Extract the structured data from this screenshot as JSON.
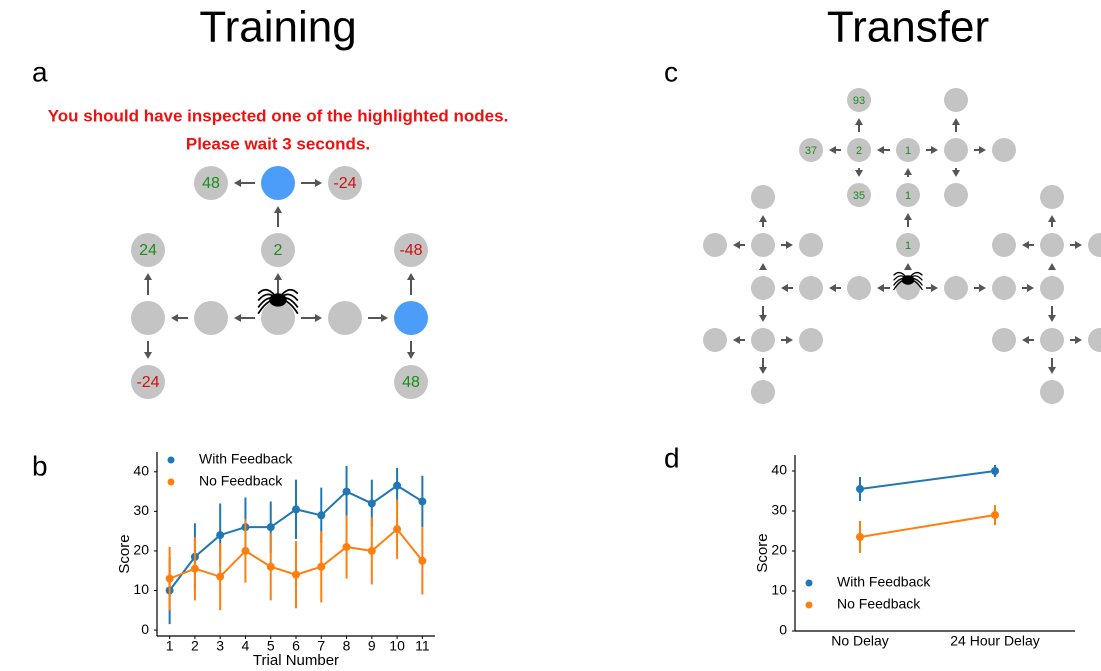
{
  "headings": [
    "Training",
    "Transfer"
  ],
  "panel_labels": [
    "a",
    "b",
    "c",
    "d"
  ],
  "training": {
    "message": [
      "You should have inspected one of the highlighted nodes.",
      "Please wait 3 seconds."
    ],
    "node_values": [
      48,
      -24,
      24,
      2,
      -48,
      -24,
      48
    ]
  },
  "transfer": {
    "node_values": [
      93,
      37,
      2,
      1,
      35,
      1,
      1
    ]
  },
  "chart_data": [
    {
      "type": "line",
      "x": [
        1,
        2,
        3,
        4,
        5,
        6,
        7,
        8,
        9,
        10,
        11
      ],
      "xlabel": "Trial Number",
      "ylabel": "Score",
      "xlim": [
        0.5,
        11.5
      ],
      "xticks": [
        1,
        2,
        3,
        4,
        5,
        6,
        7,
        8,
        9,
        10,
        11
      ],
      "ylim": [
        -1.5,
        45
      ],
      "yticks": [
        0,
        10,
        20,
        30,
        40
      ],
      "legend": "upper left",
      "series": [
        {
          "name": "With Feedback",
          "color": "#1f77b4",
          "values": [
            10,
            18.5,
            24,
            26,
            26,
            30.5,
            29,
            35,
            32,
            36.5,
            32.5
          ],
          "errors": [
            8.5,
            8.5,
            8,
            7.5,
            6.5,
            7.5,
            7,
            6.5,
            6,
            4.5,
            6.5
          ]
        },
        {
          "name": "No Feedback",
          "color": "#ff7f0e",
          "values": [
            13,
            15.5,
            13.5,
            20,
            16,
            14,
            16,
            21,
            20,
            25.5,
            17.5
          ],
          "errors": [
            8,
            8,
            8.5,
            8,
            8.5,
            8.5,
            9,
            8,
            8.5,
            7.5,
            8.5
          ]
        }
      ]
    },
    {
      "type": "line",
      "categories": [
        "No Delay",
        "24 Hour Delay"
      ],
      "ylabel": "Score",
      "ylim": [
        0,
        44
      ],
      "yticks": [
        0,
        10,
        20,
        30,
        40
      ],
      "legend": "lower left",
      "series": [
        {
          "name": "With Feedback",
          "color": "#1f77b4",
          "values": [
            35.5,
            40
          ],
          "errors": [
            3,
            1.5
          ]
        },
        {
          "name": "No Feedback",
          "color": "#ff7f0e",
          "values": [
            23.5,
            29
          ],
          "errors": [
            4,
            2.5
          ]
        }
      ]
    }
  ]
}
